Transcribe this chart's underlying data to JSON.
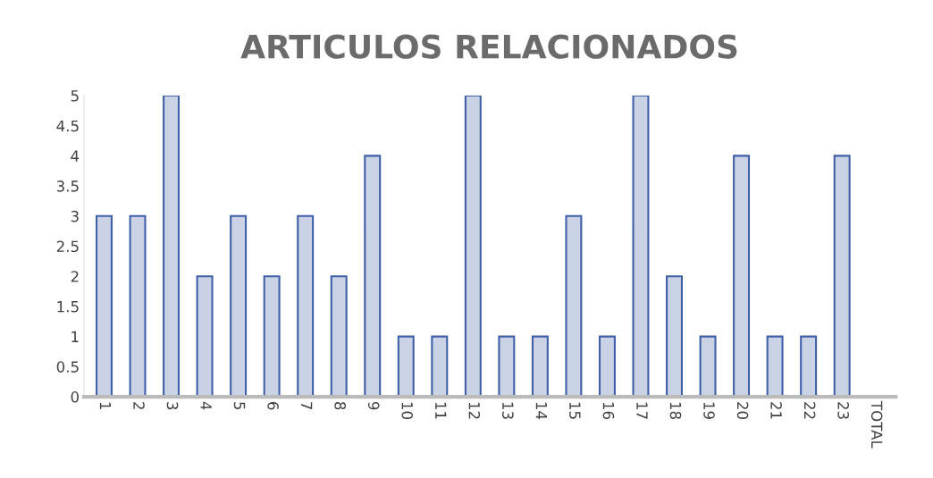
{
  "chart_data": {
    "type": "bar",
    "title": "ARTICULOS RELACIONADOS",
    "categories": [
      "1",
      "2",
      "3",
      "4",
      "5",
      "6",
      "7",
      "8",
      "9",
      "10",
      "11",
      "12",
      "13",
      "14",
      "15",
      "16",
      "17",
      "18",
      "19",
      "20",
      "21",
      "22",
      "23",
      "TOTAL"
    ],
    "values": [
      3,
      3,
      5,
      2,
      3,
      2,
      3,
      2,
      4,
      1,
      1,
      5,
      1,
      1,
      3,
      1,
      5,
      2,
      1,
      4,
      1,
      1,
      4,
      null
    ],
    "color": "#3f5fa6",
    "ylim": [
      0,
      5
    ],
    "yticks": [
      0,
      0.5,
      1,
      1.5,
      2,
      2.5,
      3,
      3.5,
      4,
      4.5,
      5
    ],
    "grid": false,
    "legend": false
  }
}
